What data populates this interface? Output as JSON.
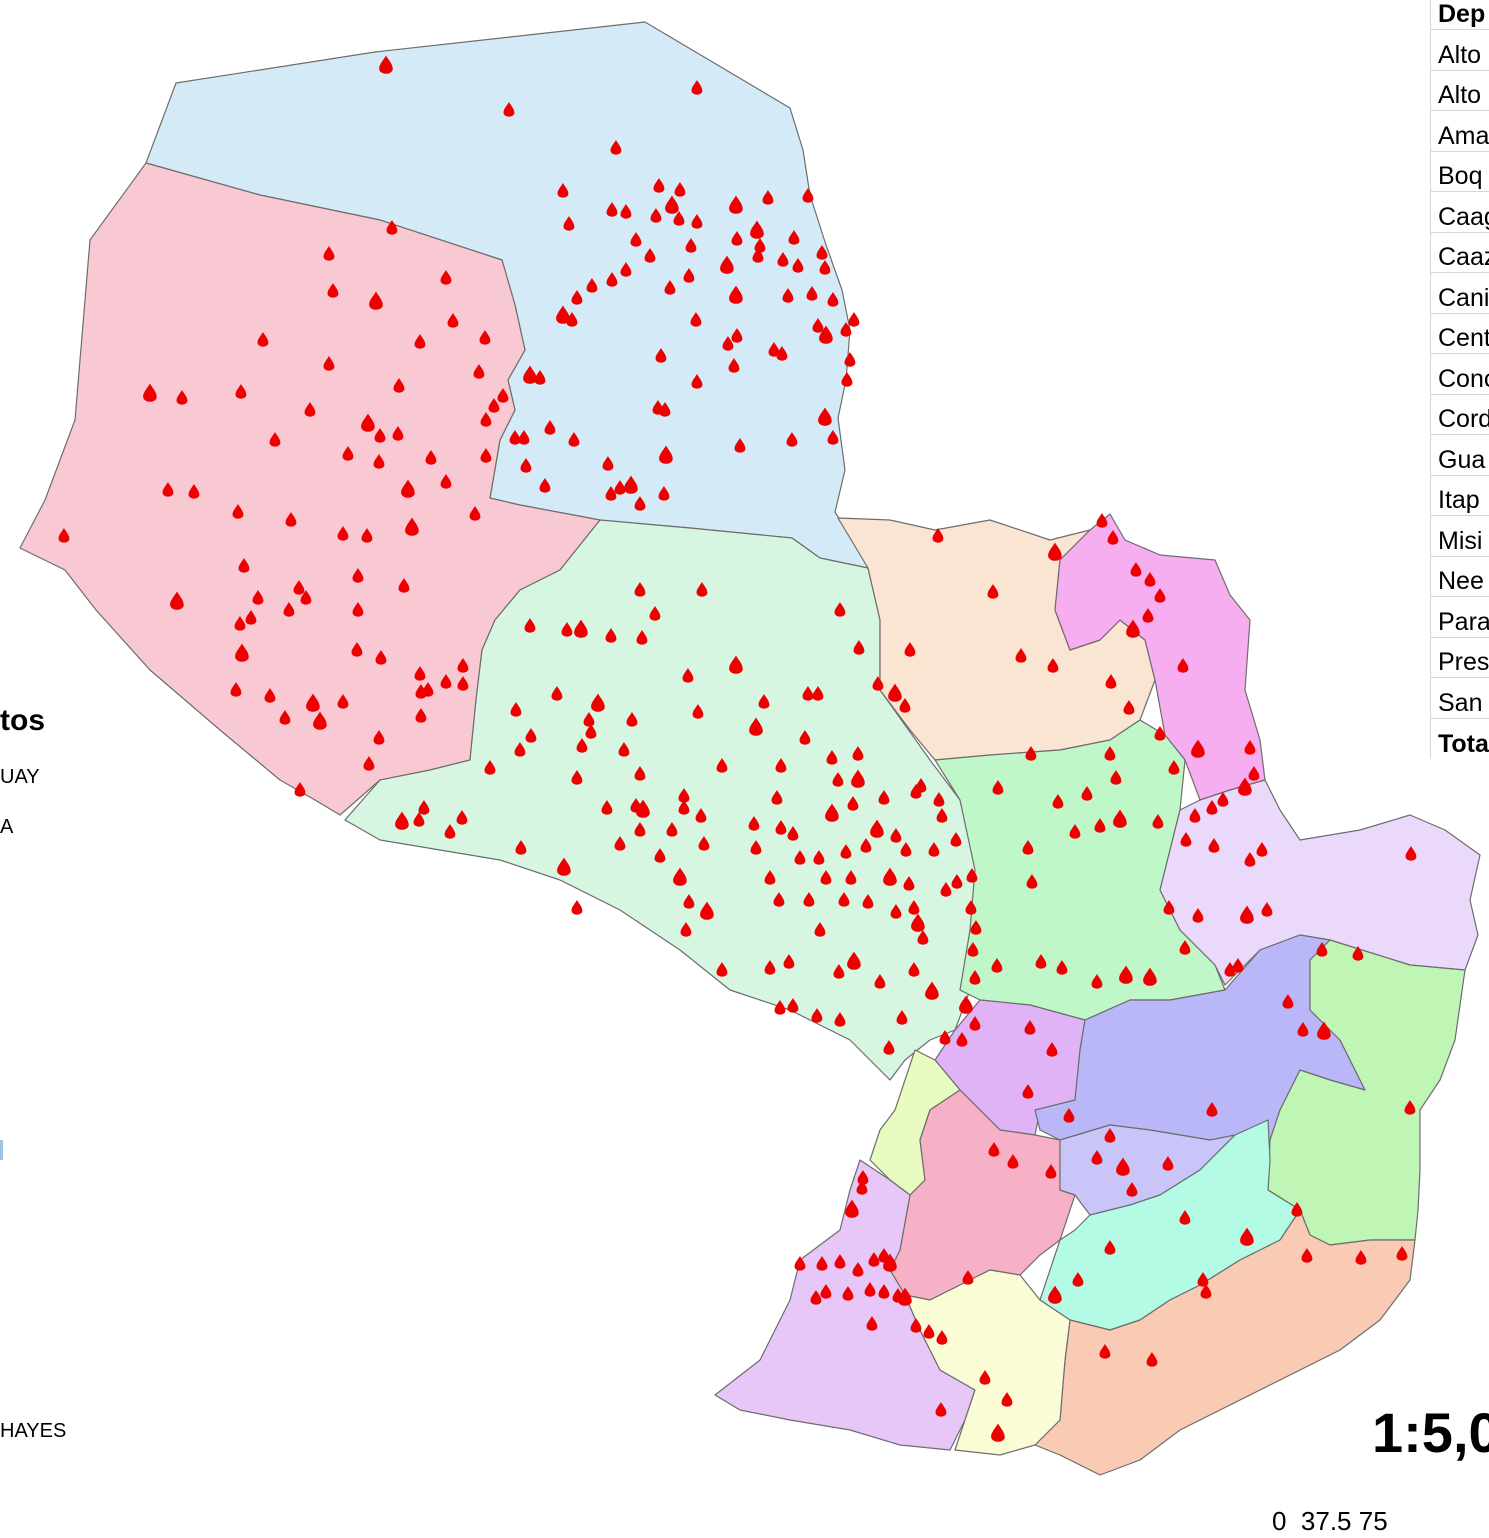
{
  "map": {
    "regions": [
      {
        "name": "Alto Paraguay",
        "color": "#d5eaf7"
      },
      {
        "name": "Boquerón",
        "color": "#f9c9d3"
      },
      {
        "name": "Presidente Hayes",
        "color": "#d6f6e2"
      },
      {
        "name": "Concepción",
        "color": "#fae5d3"
      },
      {
        "name": "Amambay",
        "color": "#f6aef0"
      },
      {
        "name": "San Pedro",
        "color": "#bff7c9"
      },
      {
        "name": "Canindeyú",
        "color": "#ead9fb"
      },
      {
        "name": "Cordillera",
        "color": "#dfb3f6"
      },
      {
        "name": "Caaguazú",
        "color": "#b9b7f7"
      },
      {
        "name": "Alto Paraná",
        "color": "#bff6b5"
      },
      {
        "name": "Central",
        "color": "#e8fbc0"
      },
      {
        "name": "Paraguarí",
        "color": "#f7b1c7"
      },
      {
        "name": "Guairá",
        "color": "#c9c5f9"
      },
      {
        "name": "Caazapá",
        "color": "#b3fbe4"
      },
      {
        "name": "Itapúa",
        "color": "#f9cab4"
      },
      {
        "name": "Ñeembucú",
        "color": "#e7c7f7"
      },
      {
        "name": "Misiones",
        "color": "#fafcd5"
      }
    ],
    "fire_color": "#ee0000"
  },
  "legend": {
    "title_fragment": "tos",
    "item1": "UAY",
    "item2": "A",
    "item3": "HAYES"
  },
  "table": {
    "header": "Dep",
    "rows": [
      "Alto",
      "Alto",
      "Ama",
      "Boq",
      "Caag",
      "Caaz",
      "Cani",
      "Cent",
      "Conc",
      "Cord",
      "Gua",
      "Itap",
      "Misi",
      "Nee",
      "Para",
      "Pres",
      "San"
    ],
    "total": "Tota"
  },
  "scale": {
    "ratio": "1:5,0",
    "labels": "0  37.5 75"
  }
}
